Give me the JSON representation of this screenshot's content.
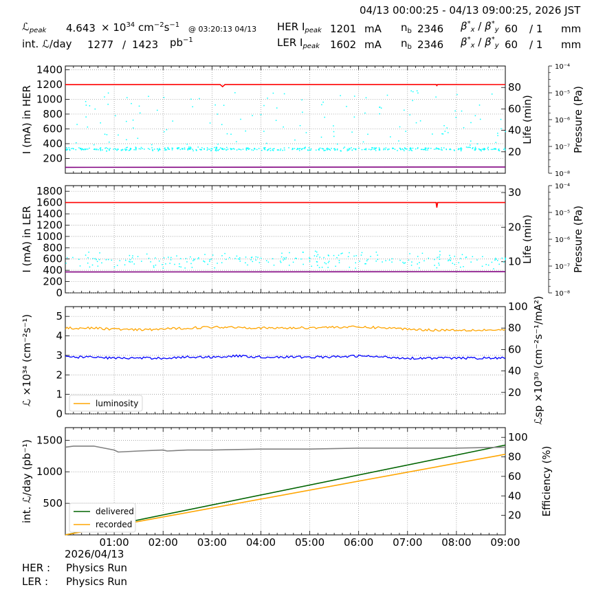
{
  "header": {
    "time_range": "04/13 00:00:25 - 04/13 09:00:25, 2026 JST",
    "lpeak_label": "ℒ",
    "lpeak_sub": "peak",
    "lpeak_value": "4.643",
    "lpeak_unit_prefix": "× 10",
    "lpeak_unit_exp": "34",
    "lpeak_unit_cm": "cm",
    "lpeak_unit_cm_exp": "−2",
    "lpeak_unit_s": "s",
    "lpeak_unit_s_exp": "−1",
    "lpeak_time": "@ 03:20:13 04/13",
    "intl_label": "int. ℒ/day",
    "intl_value1": "1277",
    "intl_sep": "/",
    "intl_value2": "1423",
    "intl_unit": "pb",
    "intl_unit_exp": "−1",
    "her_label": "HER I",
    "her_sub": "peak",
    "her_value": "1201",
    "her_unit": "mA",
    "nb_label": "n",
    "nb_sub": "b",
    "her_nb": "2346",
    "beta_label": "β",
    "beta_x": "x",
    "beta_y": "y",
    "beta_star": "*",
    "beta_sep": "/",
    "her_beta_x": "60",
    "her_beta_y": "/ 1",
    "beta_unit": "mm",
    "ler_label": "LER I",
    "ler_sub": "peak",
    "ler_value": "1602",
    "ler_unit": "mA",
    "ler_nb": "2346",
    "ler_beta_x": "60",
    "ler_beta_y": "/ 1"
  },
  "footer": {
    "date": "2026/04/13",
    "her_label": "HER :",
    "her_status": "Physics Run",
    "ler_label": "LER :",
    "ler_status": "Physics Run"
  },
  "colors": {
    "her_current": "#ff0000",
    "ler_current": "#ff0000",
    "lifetime": "#00ffff",
    "pressure": "#800080",
    "luminosity": "#ffa500",
    "specific_lumi": "#0000ff",
    "delivered": "#006400",
    "recorded": "#ffa500",
    "efficiency": "#808080"
  },
  "chart_data": [
    {
      "type": "line",
      "id": "her",
      "ylabel": "I (mA) in HER",
      "y2label": "Life (min)",
      "y3label": "Pressure (Pa)",
      "ylim": [
        0,
        1450
      ],
      "yticks": [
        200,
        400,
        600,
        800,
        1000,
        1200,
        1400
      ],
      "y2lim": [
        0,
        100
      ],
      "y2ticks": [
        20,
        40,
        60,
        80
      ],
      "y3ticks": [
        "10⁻⁴",
        "10⁻⁵",
        "10⁻⁶",
        "10⁻⁷",
        "10⁻⁸"
      ],
      "grid": true,
      "xlim": [
        "00:00",
        "09:00"
      ],
      "series": [
        {
          "role": "current",
          "x": [
            "00:00",
            "03:10",
            "03:13",
            "03:16",
            "07:35",
            "07:36",
            "07:37",
            "09:00"
          ],
          "values": [
            1198,
            1200,
            1170,
            1200,
            1200,
            1185,
            1200,
            1199
          ]
        },
        {
          "role": "pressure",
          "x": [
            "00:00",
            "09:00"
          ],
          "values": [
            80,
            85
          ]
        },
        {
          "role": "lifetime_scatter",
          "typical_min": 22,
          "typical_max": 24,
          "outliers_range": [
            28,
            80
          ]
        }
      ]
    },
    {
      "type": "line",
      "id": "ler",
      "ylabel": "I (mA) in LER",
      "y2label": "Life (min)",
      "y3label": "Pressure (Pa)",
      "ylim": [
        0,
        1900
      ],
      "yticks": [
        0,
        200,
        400,
        600,
        800,
        1000,
        1200,
        1400,
        1600,
        1800
      ],
      "y2lim": [
        1,
        32
      ],
      "y2ticks": [
        10,
        20,
        30
      ],
      "y3ticks": [
        "10⁻⁴",
        "10⁻⁵",
        "10⁻⁶",
        "10⁻⁷",
        "10⁻⁸"
      ],
      "grid": true,
      "xlim": [
        "00:00",
        "09:00"
      ],
      "series": [
        {
          "role": "current",
          "x": [
            "00:00",
            "07:35",
            "07:36",
            "07:37",
            "09:00"
          ],
          "values": [
            1600,
            1600,
            1510,
            1600,
            1600
          ]
        },
        {
          "role": "pressure",
          "x": [
            "00:00",
            "09:00"
          ],
          "values": [
            370,
            375
          ]
        },
        {
          "role": "lifetime_scatter",
          "typical_min": 9,
          "typical_max": 12
        }
      ]
    },
    {
      "type": "line",
      "id": "lumi",
      "ylabel": "ℒ ×10³⁴ (cm⁻²s⁻¹)",
      "y2label": "ℒsp ×10³⁰ (cm⁻²s⁻¹/mA²)",
      "ylim": [
        0,
        5.5
      ],
      "yticks": [
        0,
        1,
        2,
        3,
        4,
        5
      ],
      "y2lim": [
        0,
        100
      ],
      "y2ticks": [
        20,
        40,
        60,
        80,
        100
      ],
      "grid": true,
      "legend": "lower-left",
      "legend_entries": [
        "luminosity"
      ],
      "series": [
        {
          "name": "luminosity",
          "x": [
            "00:00",
            "00:30",
            "01:00",
            "01:30",
            "02:00",
            "02:30",
            "03:00",
            "03:30",
            "04:00",
            "04:30",
            "05:00",
            "05:30",
            "06:00",
            "06:30",
            "07:00",
            "07:30",
            "08:00",
            "08:30",
            "09:00"
          ],
          "values": [
            4.4,
            4.4,
            4.35,
            4.3,
            4.35,
            4.4,
            4.45,
            4.45,
            4.4,
            4.4,
            4.42,
            4.45,
            4.45,
            4.42,
            4.35,
            4.3,
            4.3,
            4.3,
            4.3
          ]
        },
        {
          "name": "specific luminosity",
          "x": [
            "00:00",
            "00:30",
            "01:00",
            "01:30",
            "02:00",
            "02:30",
            "03:00",
            "03:30",
            "04:00",
            "04:30",
            "05:00",
            "05:30",
            "06:00",
            "06:30",
            "07:00",
            "07:30",
            "08:00",
            "08:30",
            "09:00"
          ],
          "values": [
            53,
            53,
            52,
            52,
            52,
            53,
            53,
            54,
            53,
            53,
            53,
            53,
            54,
            53,
            52,
            52,
            52,
            52,
            52
          ]
        }
      ]
    },
    {
      "type": "line",
      "id": "intlumi",
      "ylabel": "int. ℒ/day (pb⁻¹)",
      "y2label": "Efficiency (%)",
      "ylim": [
        0,
        1700
      ],
      "yticks": [
        500,
        1000,
        1500
      ],
      "y2lim": [
        0,
        110
      ],
      "y2ticks": [
        20,
        40,
        60,
        80,
        100
      ],
      "grid": true,
      "legend": "lower-left",
      "legend_entries": [
        "delivered",
        "recorded"
      ],
      "xticks": [
        "01:00",
        "02:00",
        "03:00",
        "04:00",
        "05:00",
        "06:00",
        "07:00",
        "08:00",
        "09:00"
      ],
      "series": [
        {
          "name": "delivered",
          "x": [
            "00:00",
            "09:00"
          ],
          "values": [
            0,
            1423
          ]
        },
        {
          "name": "recorded",
          "x": [
            "00:00",
            "09:00"
          ],
          "values": [
            0,
            1277
          ]
        },
        {
          "name": "efficiency",
          "x": [
            "00:00",
            "00:10",
            "00:35",
            "01:00",
            "01:05",
            "01:30",
            "02:00",
            "02:05",
            "02:30",
            "03:00",
            "04:00",
            "05:00",
            "06:00",
            "06:30",
            "07:00",
            "08:00",
            "09:00"
          ],
          "values": [
            90,
            91,
            91,
            87,
            85,
            86,
            87,
            86,
            87,
            87,
            88,
            88,
            89,
            89,
            89,
            89,
            90
          ]
        }
      ]
    }
  ]
}
